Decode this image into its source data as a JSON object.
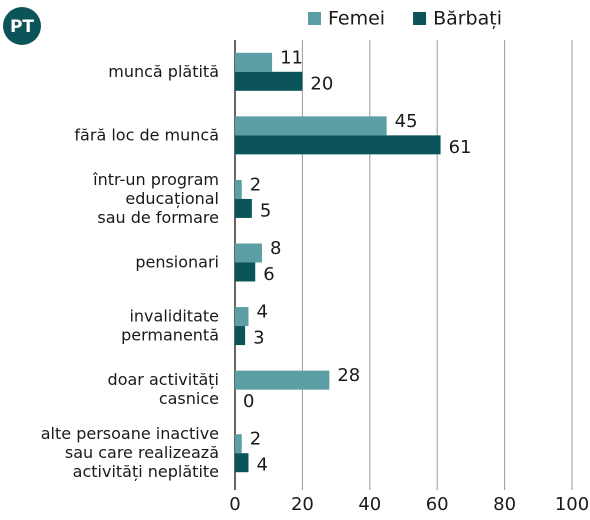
{
  "chart_data": {
    "type": "barh",
    "badge": "PT",
    "categories": [
      "muncă plătită",
      "fără loc de muncă",
      "într-un program\neducațional\nsau de formare",
      "pensionari",
      "invaliditate\npermanentă",
      "doar activități\ncasnice",
      "alte persoane inactive\nsau care realizează\nactivități neplătite"
    ],
    "series": [
      {
        "name": "Femei",
        "color": "#5b9fa5",
        "values": [
          11,
          45,
          2,
          8,
          4,
          28,
          2
        ]
      },
      {
        "name": "Bărbați",
        "color": "#0b5459",
        "values": [
          20,
          61,
          5,
          6,
          3,
          0,
          4
        ]
      }
    ],
    "xlim": [
      0,
      100
    ],
    "xticks": [
      0,
      20,
      40,
      60,
      80,
      100
    ],
    "grid": true,
    "legend": "top"
  }
}
